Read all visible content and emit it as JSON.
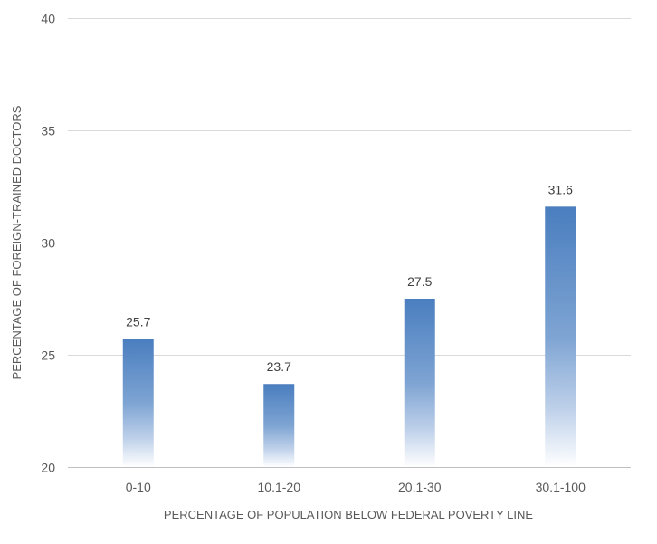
{
  "chart_data": {
    "type": "bar",
    "categories": [
      "0-10",
      "10.1-20",
      "20.1-30",
      "30.1-100"
    ],
    "values": [
      25.7,
      23.7,
      27.5,
      31.6
    ],
    "data_labels": [
      "25.7",
      "23.7",
      "27.5",
      "31.6"
    ],
    "title": "",
    "xlabel": "PERCENTAGE OF POPULATION BELOW FEDERAL POVERTY LINE",
    "ylabel": "PERCENTAGE OF FOREIGN-TRAINED DOCTORS",
    "ylim": [
      20,
      40
    ],
    "yticks": [
      20,
      25,
      30,
      35,
      40
    ],
    "ytick_labels": [
      "20",
      "25",
      "30",
      "35",
      "40"
    ],
    "grid": true,
    "legend": "none",
    "bar_color": "#4a7ebf"
  }
}
